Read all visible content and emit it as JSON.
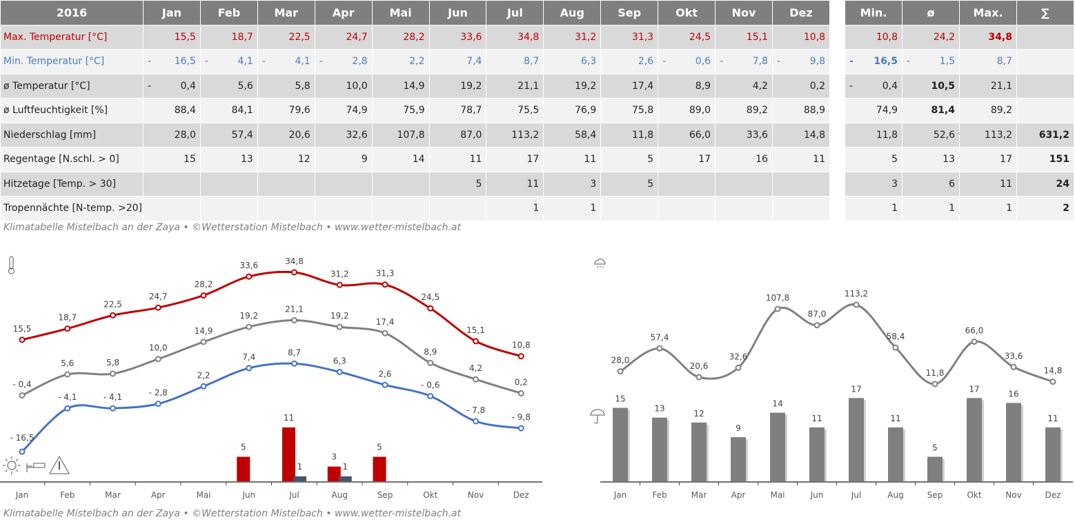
{
  "table": {
    "year": "2016",
    "months": [
      "Jan",
      "Feb",
      "Mar",
      "Apr",
      "Mai",
      "Jun",
      "Jul",
      "Aug",
      "Sep",
      "Okt",
      "Nov",
      "Dez"
    ],
    "summary_headers": [
      "Min.",
      "ø",
      "Max.",
      "∑"
    ],
    "rows": [
      {
        "label": "Max. Temperatur [°C]",
        "color": "red",
        "values": [
          "15,5",
          "18,7",
          "22,5",
          "24,7",
          "28,2",
          "33,6",
          "34,8",
          "31,2",
          "31,3",
          "24,5",
          "15,1",
          "10,8"
        ],
        "summary": [
          "10,8",
          "24,2",
          "34,8",
          ""
        ],
        "bold": 2
      },
      {
        "label": "Min. Temperatur [°C]",
        "color": "blue",
        "values": [
          "- 16,5",
          "- 4,1",
          "- 4,1",
          "- 2,8",
          "2,2",
          "7,4",
          "8,7",
          "6,3",
          "2,6",
          "- 0,6",
          "- 7,8",
          "- 9,8"
        ],
        "summary": [
          "- 16,5",
          "- 1,5",
          "8,7",
          ""
        ],
        "bold": 0
      },
      {
        "label": "ø Temperatur [°C]",
        "color": "",
        "values": [
          "- 0,4",
          "5,6",
          "5,8",
          "10,0",
          "14,9",
          "19,2",
          "21,1",
          "19,2",
          "17,4",
          "8,9",
          "4,2",
          "0,2"
        ],
        "summary": [
          "- 0,4",
          "10,5",
          "21,1",
          ""
        ],
        "bold": 1
      },
      {
        "label": "ø Luftfeuchtigkeit [%]",
        "color": "",
        "values": [
          "88,4",
          "84,1",
          "79,6",
          "74,9",
          "75,9",
          "78,7",
          "75,5",
          "76,9",
          "75,8",
          "89,0",
          "89,2",
          "88,9"
        ],
        "summary": [
          "74,9",
          "81,4",
          "89,2",
          ""
        ],
        "bold": 1
      },
      {
        "label": "Niederschlag [mm]",
        "color": "",
        "values": [
          "28,0",
          "57,4",
          "20,6",
          "32,6",
          "107,8",
          "87,0",
          "113,2",
          "58,4",
          "11,8",
          "66,0",
          "33,6",
          "14,8"
        ],
        "summary": [
          "11,8",
          "52,6",
          "113,2",
          "631,2"
        ],
        "bold": 3
      },
      {
        "label": "Regentage [N.schl. > 0]",
        "color": "",
        "values": [
          "15",
          "13",
          "12",
          "9",
          "14",
          "11",
          "17",
          "11",
          "5",
          "17",
          "16",
          "11"
        ],
        "summary": [
          "5",
          "13",
          "17",
          "151"
        ],
        "bold": 3
      },
      {
        "label": "Hitzetage [Temp. > 30]",
        "color": "",
        "values": [
          "",
          "",
          "",
          "",
          "",
          "5",
          "11",
          "3",
          "5",
          "",
          "",
          ""
        ],
        "summary": [
          "3",
          "6",
          "11",
          "24"
        ],
        "bold": 3
      },
      {
        "label": "Tropennächte [N-temp. >20]",
        "color": "",
        "values": [
          "",
          "",
          "",
          "",
          "",
          "",
          "1",
          "1",
          "",
          "",
          "",
          ""
        ],
        "summary": [
          "1",
          "1",
          "1",
          "2"
        ],
        "bold": 3
      }
    ]
  },
  "caption": "Klimatabelle Mistelbach an der Zaya  •  ©Wetterstation Mistelbach  •  www.wetter-mistelbach.at",
  "colors": {
    "max": "#c00000",
    "min": "#4472c4",
    "avg": "#808080",
    "hot": "#c00000",
    "tropical": "#44546a",
    "rain": "#7f7f7f"
  },
  "icons": [
    "thermometer-icon",
    "sun-icon",
    "bed-icon",
    "heat-warning-icon",
    "rain-cloud-icon",
    "umbrella-icon"
  ],
  "chart_data": [
    {
      "type": "line+bar",
      "categories": [
        "Jan",
        "Feb",
        "Mar",
        "Apr",
        "Mai",
        "Jun",
        "Jul",
        "Aug",
        "Sep",
        "Okt",
        "Nov",
        "Dez"
      ],
      "series": [
        {
          "kind": "line",
          "values": [
            15.5,
            18.7,
            22.5,
            24.7,
            28.2,
            33.6,
            34.8,
            31.2,
            31.3,
            24.5,
            15.1,
            10.8
          ],
          "labels": [
            "15,5",
            "18,7",
            "22,5",
            "24,7",
            "28,2",
            "33,6",
            "34,8",
            "31,2",
            "31,3",
            "24,5",
            "15,1",
            "10,8"
          ]
        },
        {
          "kind": "line",
          "values": [
            -0.4,
            5.6,
            5.8,
            10.0,
            14.9,
            19.2,
            21.1,
            19.2,
            17.4,
            8.9,
            4.2,
            0.2
          ],
          "labels": [
            "- 0,4",
            "5,6",
            "5,8",
            "10,0",
            "14,9",
            "19,2",
            "21,1",
            "19,2",
            "17,4",
            "8,9",
            "4,2",
            "0,2"
          ]
        },
        {
          "kind": "line",
          "values": [
            -16.5,
            -4.1,
            -4.1,
            -2.8,
            2.2,
            7.4,
            8.7,
            6.3,
            2.6,
            -0.6,
            -7.8,
            -9.8
          ],
          "labels": [
            "- 16,5",
            "- 4,1",
            "- 4,1",
            "- 2,8",
            "2,2",
            "7,4",
            "8,7",
            "6,3",
            "2,6",
            "- 0,6",
            "- 7,8",
            "- 9,8"
          ]
        },
        {
          "kind": "bar",
          "values": [
            null,
            null,
            null,
            null,
            null,
            5,
            11,
            3,
            5,
            null,
            null,
            null
          ]
        },
        {
          "kind": "bar",
          "values": [
            null,
            null,
            null,
            null,
            null,
            null,
            1,
            1,
            null,
            null,
            null,
            null
          ]
        }
      ]
    },
    {
      "type": "line+bar",
      "categories": [
        "Jan",
        "Feb",
        "Mar",
        "Apr",
        "Mai",
        "Jun",
        "Jul",
        "Aug",
        "Sep",
        "Okt",
        "Nov",
        "Dez"
      ],
      "series": [
        {
          "kind": "line",
          "values": [
            28.0,
            57.4,
            20.6,
            32.6,
            107.8,
            87.0,
            113.2,
            58.4,
            11.8,
            66.0,
            33.6,
            14.8
          ],
          "labels": [
            "28,0",
            "57,4",
            "20,6",
            "32,6",
            "107,8",
            "87,0",
            "113,2",
            "58,4",
            "11,8",
            "66,0",
            "33,6",
            "14,8"
          ]
        },
        {
          "kind": "bar",
          "values": [
            15,
            13,
            12,
            9,
            14,
            11,
            17,
            11,
            5,
            17,
            16,
            11
          ]
        }
      ]
    }
  ]
}
